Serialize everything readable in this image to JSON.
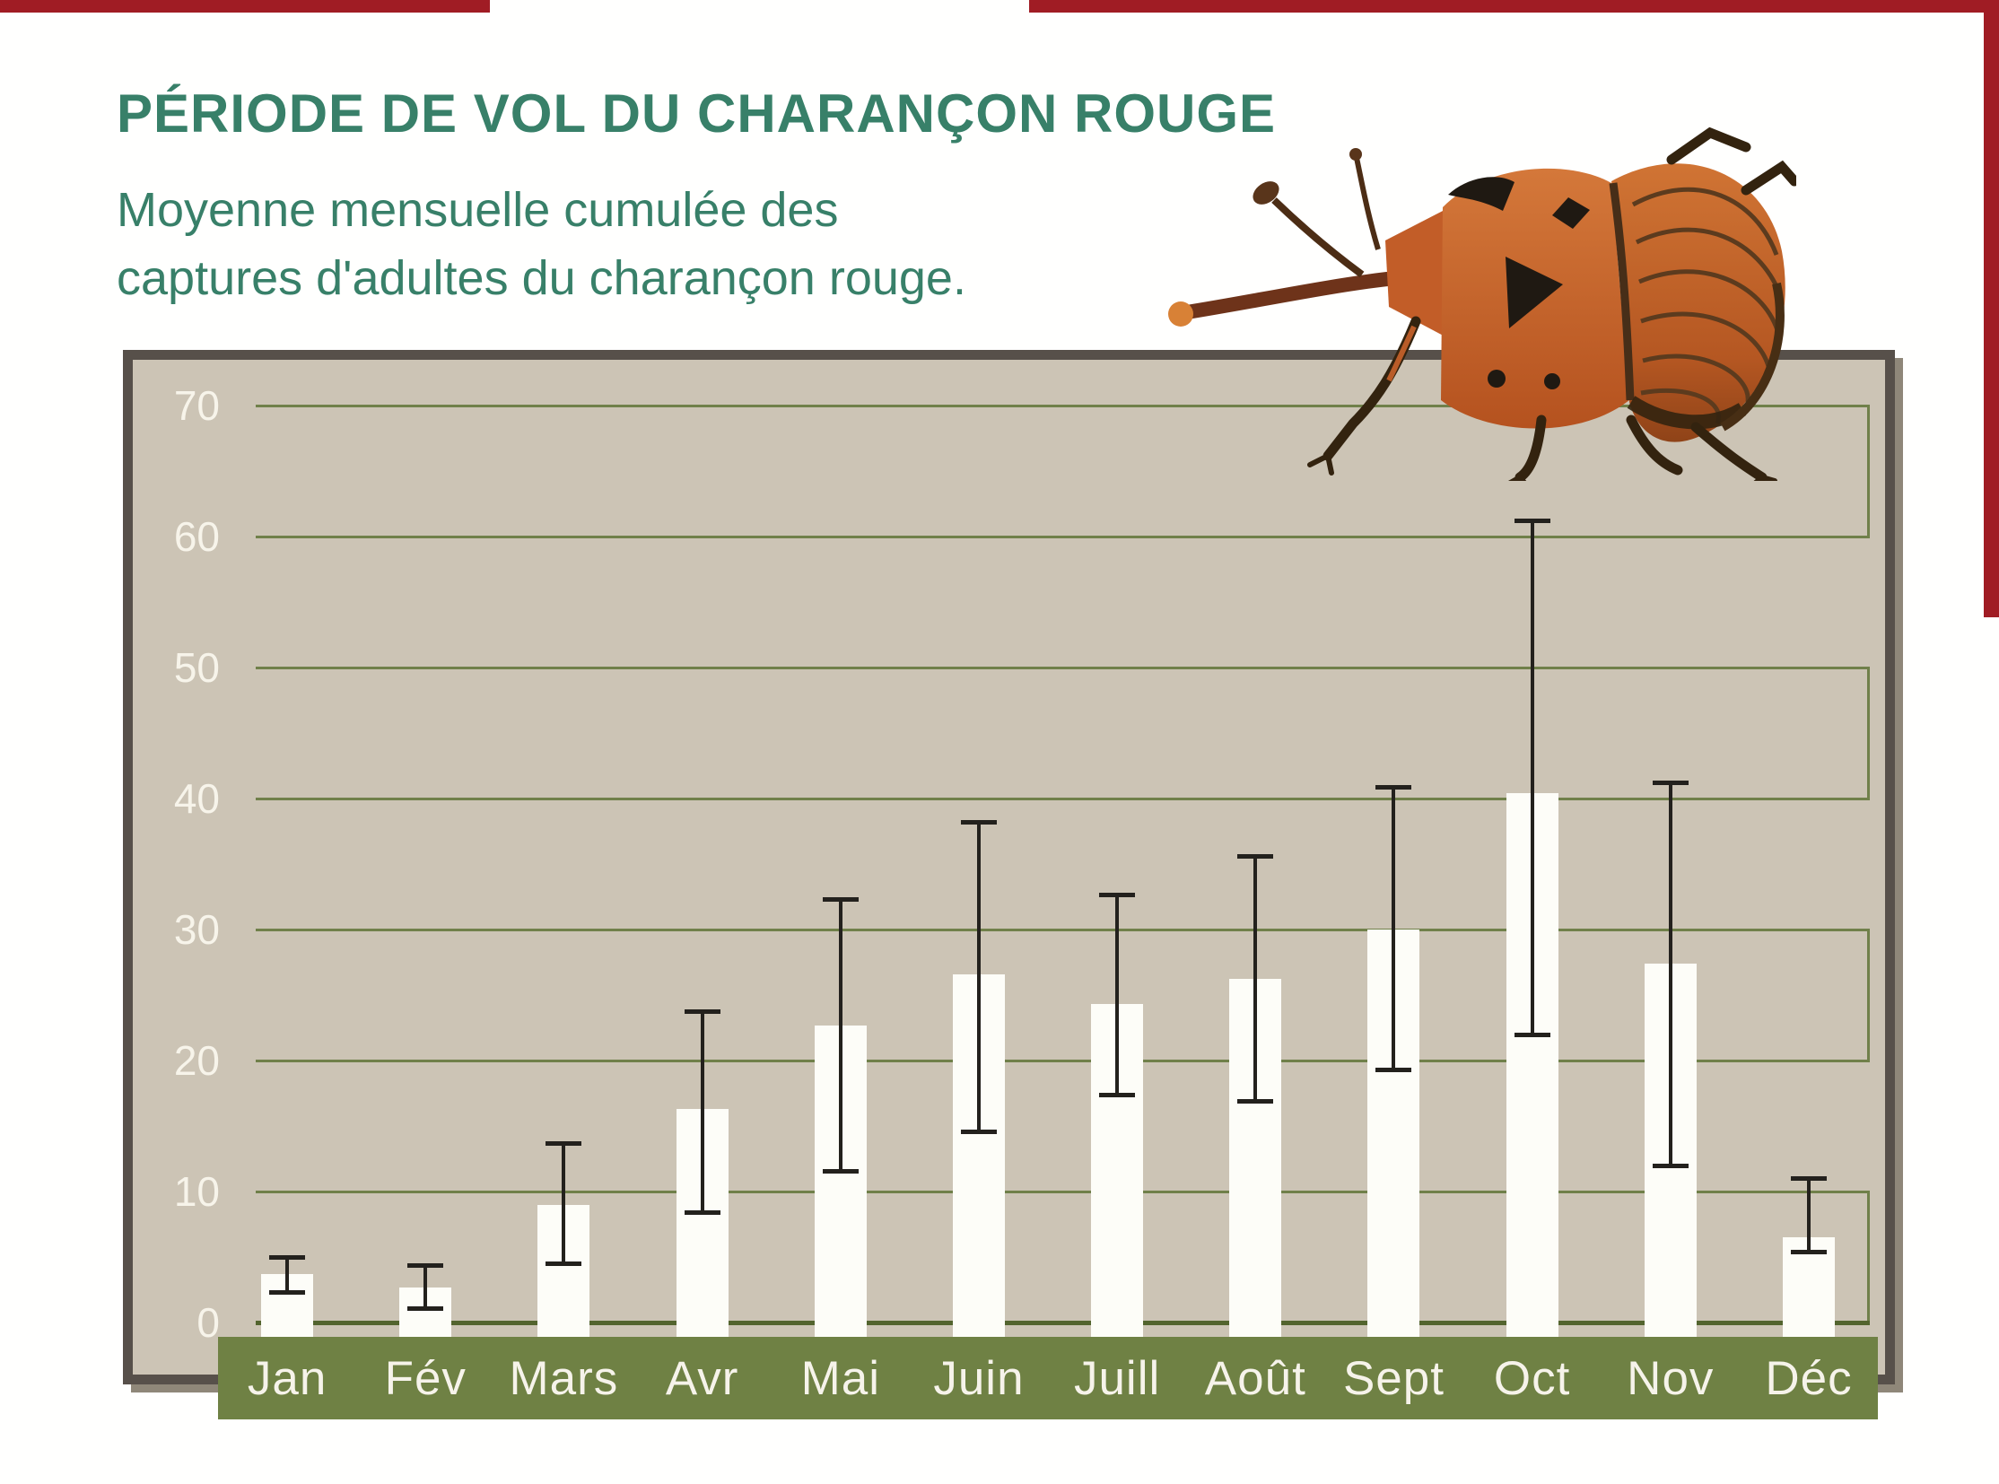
{
  "header": {
    "title": "PÉRIODE DE VOL DU CHARANÇON ROUGE",
    "subtitle_line1": "Moyenne mensuelle cumulée des",
    "subtitle_line2": "captures d'adultes du charançon rouge."
  },
  "illustration": {
    "name": "red-palm-weevil"
  },
  "chart_data": {
    "type": "bar",
    "title": "PÉRIODE DE VOL DU CHARANÇON ROUGE",
    "subtitle": "Moyenne mensuelle cumulée des captures d'adultes du charançon rouge.",
    "categories": [
      "Jan",
      "Fév",
      "Mars",
      "Avr",
      "Mai",
      "Juin",
      "Juill",
      "Août",
      "Sept",
      "Oct",
      "Nov",
      "Déc"
    ],
    "series": [
      {
        "name": "Moyenne mensuelle cumulée des captures d'adultes",
        "values": [
          3.7,
          2.7,
          9.0,
          16.3,
          22.7,
          26.6,
          24.3,
          26.2,
          30.0,
          40.4,
          27.4,
          6.5
        ],
        "error_low": [
          2.3,
          1.1,
          4.5,
          8.4,
          11.6,
          14.6,
          17.4,
          16.9,
          19.3,
          22.0,
          12.0,
          5.4
        ],
        "error_high": [
          5.0,
          4.4,
          13.7,
          23.8,
          32.3,
          38.2,
          32.7,
          35.6,
          40.9,
          61.2,
          41.2,
          11.0
        ]
      }
    ],
    "xlabel": "",
    "ylabel": "",
    "ylim": [
      0,
      70
    ],
    "yticks": [
      0,
      10,
      20,
      30,
      40,
      50,
      60,
      70
    ],
    "grid": true,
    "grid_style": "paired-boxes",
    "legend": false
  },
  "colors": {
    "page_border_red": "#a01c24",
    "title_green": "#388069",
    "plot_bg": "#ccc4b5",
    "frame": "#57504a",
    "frame_shadow": "#8f8779",
    "gridline": "#70804a",
    "baseline": "#53642e",
    "band_green": "#6f8144",
    "bar_fill": "#fdfdf8",
    "error_bar": "#23211d",
    "tick_label": "#f7f4ea",
    "month_label": "#f6f3ea"
  }
}
